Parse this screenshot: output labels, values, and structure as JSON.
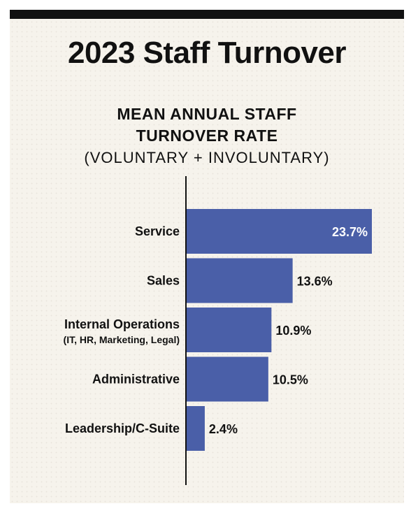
{
  "title": "2023 Staff Turnover",
  "subtitle_line1": "MEAN ANNUAL STAFF",
  "subtitle_line2": "TURNOVER RATE",
  "subtitle_line3": "(VOLUNTARY + INVOLUNTARY)",
  "colors": {
    "bar": "#4a5fa8",
    "background": "#f6f3ec",
    "text": "#111111",
    "label_inside": "#ffffff"
  },
  "chart_data": {
    "type": "bar",
    "orientation": "horizontal",
    "categories": [
      "Service",
      "Sales",
      "Internal Operations",
      "Administrative",
      "Leadership/C-Suite"
    ],
    "category_sublabels": [
      "",
      "",
      "(IT, HR, Marketing, Legal)",
      "",
      ""
    ],
    "values": [
      23.7,
      13.6,
      10.9,
      10.5,
      2.4
    ],
    "value_labels": [
      "23.7%",
      "13.6%",
      "10.9%",
      "10.5%",
      "2.4%"
    ],
    "unit": "%",
    "xlim": [
      0,
      23.7
    ],
    "grid": false,
    "legend": "none"
  }
}
